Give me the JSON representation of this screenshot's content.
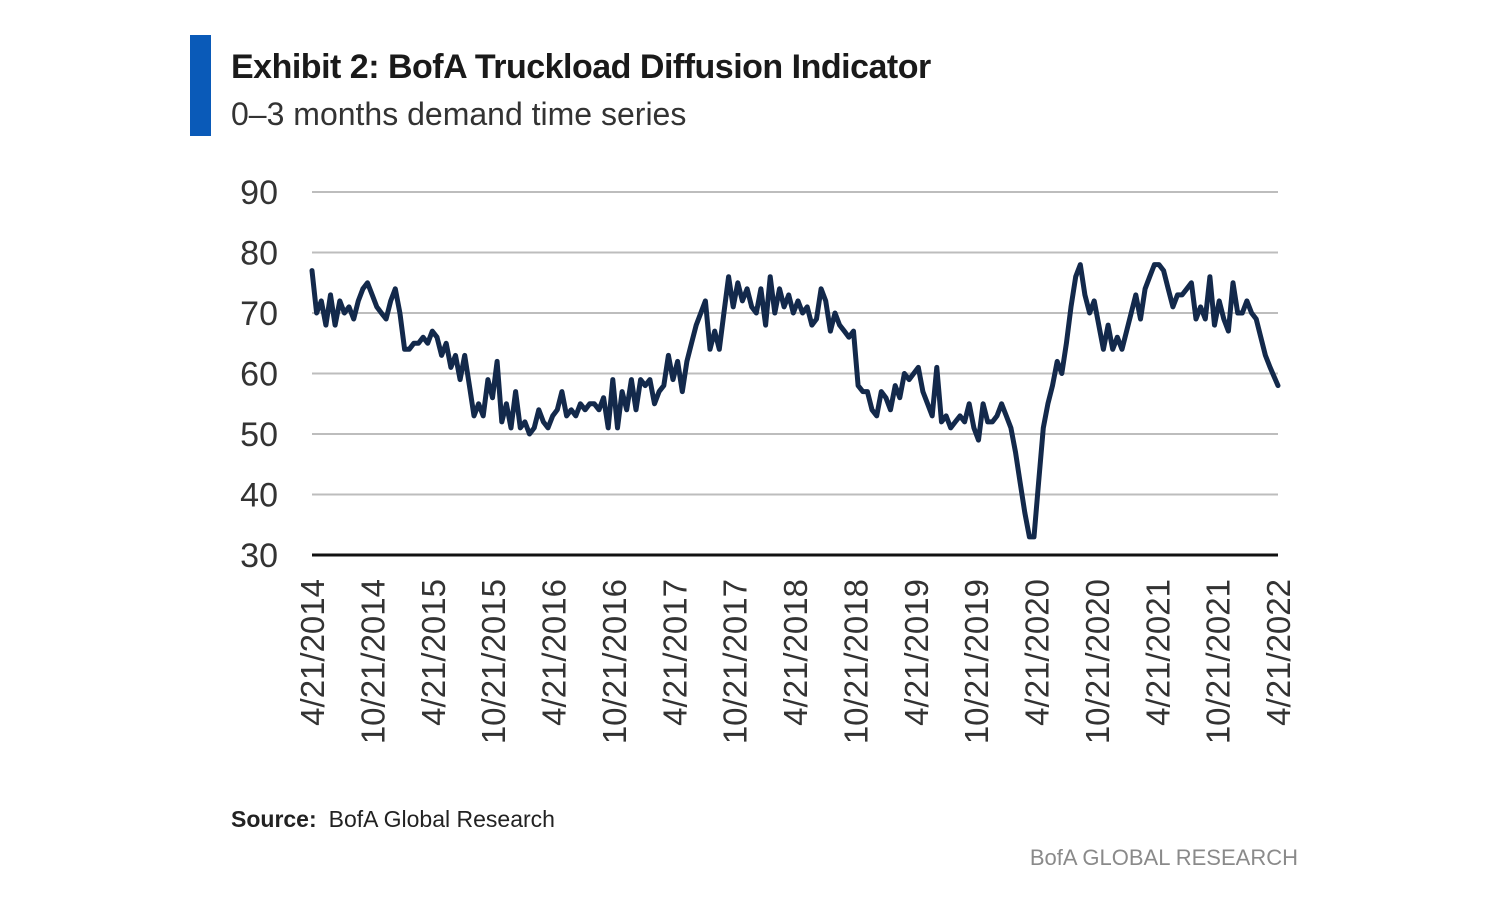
{
  "header": {
    "title": "Exhibit 2: BofA Truckload Diffusion Indicator",
    "subtitle": "0–3 months demand time series",
    "accent_color": "#0a5ab8"
  },
  "footer": {
    "source_label": "Source:",
    "source_text": "BofA Global Research",
    "brand": "BofA GLOBAL RESEARCH"
  },
  "chart_data": {
    "type": "line",
    "title": "Exhibit 2: BofA Truckload Diffusion Indicator",
    "subtitle": "0–3 months demand time series",
    "xlabel": "",
    "ylabel": "",
    "ylim": [
      30,
      90
    ],
    "yticks": [
      30,
      40,
      50,
      60,
      70,
      80,
      90
    ],
    "xlim": [
      "2014-04-21",
      "2022-04-21"
    ],
    "xtick_labels": [
      "4/21/2014",
      "10/21/2014",
      "4/21/2015",
      "10/21/2015",
      "4/21/2016",
      "10/21/2016",
      "4/21/2017",
      "10/21/2017",
      "4/21/2018",
      "10/21/2018",
      "4/21/2019",
      "10/21/2019",
      "4/21/2020",
      "10/21/2020",
      "4/21/2021",
      "10/21/2021",
      "4/21/2022"
    ],
    "grid": "horizontal",
    "line_color": "#13294b",
    "series": [
      {
        "values": [
          [
            "2014-04-21",
            77
          ],
          [
            "2014-05-05",
            70
          ],
          [
            "2014-05-19",
            72
          ],
          [
            "2014-06-02",
            68
          ],
          [
            "2014-06-16",
            73
          ],
          [
            "2014-06-30",
            68
          ],
          [
            "2014-07-14",
            72
          ],
          [
            "2014-07-28",
            70
          ],
          [
            "2014-08-11",
            71
          ],
          [
            "2014-08-25",
            69
          ],
          [
            "2014-09-08",
            72
          ],
          [
            "2014-09-22",
            74
          ],
          [
            "2014-10-06",
            75
          ],
          [
            "2014-10-20",
            73
          ],
          [
            "2014-11-03",
            71
          ],
          [
            "2014-11-17",
            70
          ],
          [
            "2014-12-01",
            69
          ],
          [
            "2014-12-15",
            72
          ],
          [
            "2014-12-29",
            74
          ],
          [
            "2015-01-12",
            70
          ],
          [
            "2015-01-26",
            64
          ],
          [
            "2015-02-09",
            64
          ],
          [
            "2015-02-23",
            65
          ],
          [
            "2015-03-09",
            65
          ],
          [
            "2015-03-23",
            66
          ],
          [
            "2015-04-06",
            65
          ],
          [
            "2015-04-20",
            67
          ],
          [
            "2015-05-04",
            66
          ],
          [
            "2015-05-18",
            63
          ],
          [
            "2015-06-01",
            65
          ],
          [
            "2015-06-15",
            61
          ],
          [
            "2015-06-29",
            63
          ],
          [
            "2015-07-13",
            59
          ],
          [
            "2015-07-27",
            63
          ],
          [
            "2015-08-10",
            58
          ],
          [
            "2015-08-24",
            53
          ],
          [
            "2015-09-07",
            55
          ],
          [
            "2015-09-21",
            53
          ],
          [
            "2015-10-05",
            59
          ],
          [
            "2015-10-19",
            56
          ],
          [
            "2015-11-02",
            62
          ],
          [
            "2015-11-16",
            52
          ],
          [
            "2015-11-30",
            55
          ],
          [
            "2015-12-14",
            51
          ],
          [
            "2015-12-28",
            57
          ],
          [
            "2016-01-11",
            51
          ],
          [
            "2016-01-25",
            52
          ],
          [
            "2016-02-08",
            50
          ],
          [
            "2016-02-22",
            51
          ],
          [
            "2016-03-07",
            54
          ],
          [
            "2016-03-21",
            52
          ],
          [
            "2016-04-04",
            51
          ],
          [
            "2016-04-18",
            53
          ],
          [
            "2016-05-02",
            54
          ],
          [
            "2016-05-16",
            57
          ],
          [
            "2016-05-30",
            53
          ],
          [
            "2016-06-13",
            54
          ],
          [
            "2016-06-27",
            53
          ],
          [
            "2016-07-11",
            55
          ],
          [
            "2016-07-25",
            54
          ],
          [
            "2016-08-08",
            55
          ],
          [
            "2016-08-22",
            55
          ],
          [
            "2016-09-05",
            54
          ],
          [
            "2016-09-19",
            56
          ],
          [
            "2016-10-03",
            51
          ],
          [
            "2016-10-17",
            59
          ],
          [
            "2016-10-31",
            51
          ],
          [
            "2016-11-14",
            57
          ],
          [
            "2016-11-28",
            54
          ],
          [
            "2016-12-12",
            59
          ],
          [
            "2016-12-26",
            54
          ],
          [
            "2017-01-09",
            59
          ],
          [
            "2017-01-23",
            58
          ],
          [
            "2017-02-06",
            59
          ],
          [
            "2017-02-20",
            55
          ],
          [
            "2017-03-06",
            57
          ],
          [
            "2017-03-20",
            58
          ],
          [
            "2017-04-03",
            63
          ],
          [
            "2017-04-17",
            59
          ],
          [
            "2017-05-01",
            62
          ],
          [
            "2017-05-15",
            57
          ],
          [
            "2017-05-29",
            62
          ],
          [
            "2017-06-12",
            65
          ],
          [
            "2017-06-26",
            68
          ],
          [
            "2017-07-10",
            70
          ],
          [
            "2017-07-24",
            72
          ],
          [
            "2017-08-07",
            64
          ],
          [
            "2017-08-21",
            67
          ],
          [
            "2017-09-04",
            64
          ],
          [
            "2017-09-18",
            70
          ],
          [
            "2017-10-02",
            76
          ],
          [
            "2017-10-16",
            71
          ],
          [
            "2017-10-30",
            75
          ],
          [
            "2017-11-13",
            72
          ],
          [
            "2017-11-27",
            74
          ],
          [
            "2017-12-11",
            71
          ],
          [
            "2017-12-25",
            70
          ],
          [
            "2018-01-08",
            74
          ],
          [
            "2018-01-22",
            68
          ],
          [
            "2018-02-05",
            76
          ],
          [
            "2018-02-19",
            70
          ],
          [
            "2018-03-05",
            74
          ],
          [
            "2018-03-19",
            71
          ],
          [
            "2018-04-02",
            73
          ],
          [
            "2018-04-16",
            70
          ],
          [
            "2018-04-30",
            72
          ],
          [
            "2018-05-14",
            70
          ],
          [
            "2018-05-28",
            71
          ],
          [
            "2018-06-11",
            68
          ],
          [
            "2018-06-25",
            69
          ],
          [
            "2018-07-09",
            74
          ],
          [
            "2018-07-23",
            72
          ],
          [
            "2018-08-06",
            67
          ],
          [
            "2018-08-20",
            70
          ],
          [
            "2018-09-03",
            68
          ],
          [
            "2018-09-17",
            67
          ],
          [
            "2018-10-01",
            66
          ],
          [
            "2018-10-15",
            67
          ],
          [
            "2018-10-29",
            58
          ],
          [
            "2018-11-12",
            57
          ],
          [
            "2018-11-26",
            57
          ],
          [
            "2018-12-10",
            54
          ],
          [
            "2018-12-24",
            53
          ],
          [
            "2019-01-07",
            57
          ],
          [
            "2019-01-21",
            56
          ],
          [
            "2019-02-04",
            54
          ],
          [
            "2019-02-18",
            58
          ],
          [
            "2019-03-04",
            56
          ],
          [
            "2019-03-18",
            60
          ],
          [
            "2019-04-01",
            59
          ],
          [
            "2019-04-15",
            60
          ],
          [
            "2019-04-29",
            61
          ],
          [
            "2019-05-13",
            57
          ],
          [
            "2019-05-27",
            55
          ],
          [
            "2019-06-10",
            53
          ],
          [
            "2019-06-24",
            61
          ],
          [
            "2019-07-08",
            52
          ],
          [
            "2019-07-22",
            53
          ],
          [
            "2019-08-05",
            51
          ],
          [
            "2019-08-19",
            52
          ],
          [
            "2019-09-02",
            53
          ],
          [
            "2019-09-16",
            52
          ],
          [
            "2019-09-30",
            55
          ],
          [
            "2019-10-14",
            51
          ],
          [
            "2019-10-28",
            49
          ],
          [
            "2019-11-11",
            55
          ],
          [
            "2019-11-25",
            52
          ],
          [
            "2019-12-09",
            52
          ],
          [
            "2019-12-23",
            53
          ],
          [
            "2020-01-06",
            55
          ],
          [
            "2020-01-20",
            53
          ],
          [
            "2020-02-03",
            51
          ],
          [
            "2020-02-17",
            47
          ],
          [
            "2020-03-02",
            42
          ],
          [
            "2020-03-16",
            37
          ],
          [
            "2020-03-30",
            33
          ],
          [
            "2020-04-13",
            33
          ],
          [
            "2020-04-27",
            42
          ],
          [
            "2020-05-11",
            51
          ],
          [
            "2020-05-25",
            55
          ],
          [
            "2020-06-08",
            58
          ],
          [
            "2020-06-22",
            62
          ],
          [
            "2020-07-06",
            60
          ],
          [
            "2020-07-20",
            65
          ],
          [
            "2020-08-03",
            71
          ],
          [
            "2020-08-17",
            76
          ],
          [
            "2020-08-31",
            78
          ],
          [
            "2020-09-14",
            73
          ],
          [
            "2020-09-28",
            70
          ],
          [
            "2020-10-12",
            72
          ],
          [
            "2020-10-26",
            68
          ],
          [
            "2020-11-09",
            64
          ],
          [
            "2020-11-23",
            68
          ],
          [
            "2020-12-07",
            64
          ],
          [
            "2020-12-21",
            66
          ],
          [
            "2021-01-04",
            64
          ],
          [
            "2021-01-18",
            67
          ],
          [
            "2021-02-01",
            70
          ],
          [
            "2021-02-15",
            73
          ],
          [
            "2021-03-01",
            69
          ],
          [
            "2021-03-15",
            74
          ],
          [
            "2021-03-29",
            76
          ],
          [
            "2021-04-12",
            78
          ],
          [
            "2021-04-26",
            78
          ],
          [
            "2021-05-10",
            77
          ],
          [
            "2021-05-24",
            74
          ],
          [
            "2021-06-07",
            71
          ],
          [
            "2021-06-21",
            73
          ],
          [
            "2021-07-05",
            73
          ],
          [
            "2021-07-19",
            74
          ],
          [
            "2021-08-02",
            75
          ],
          [
            "2021-08-16",
            69
          ],
          [
            "2021-08-30",
            71
          ],
          [
            "2021-09-13",
            69
          ],
          [
            "2021-09-27",
            76
          ],
          [
            "2021-10-11",
            68
          ],
          [
            "2021-10-25",
            72
          ],
          [
            "2021-11-08",
            69
          ],
          [
            "2021-11-22",
            67
          ],
          [
            "2021-12-06",
            75
          ],
          [
            "2021-12-20",
            70
          ],
          [
            "2022-01-03",
            70
          ],
          [
            "2022-01-17",
            72
          ],
          [
            "2022-01-31",
            70
          ],
          [
            "2022-02-14",
            69
          ],
          [
            "2022-02-28",
            66
          ],
          [
            "2022-03-14",
            63
          ],
          [
            "2022-03-28",
            61
          ],
          [
            "2022-04-21",
            58
          ]
        ]
      }
    ]
  }
}
